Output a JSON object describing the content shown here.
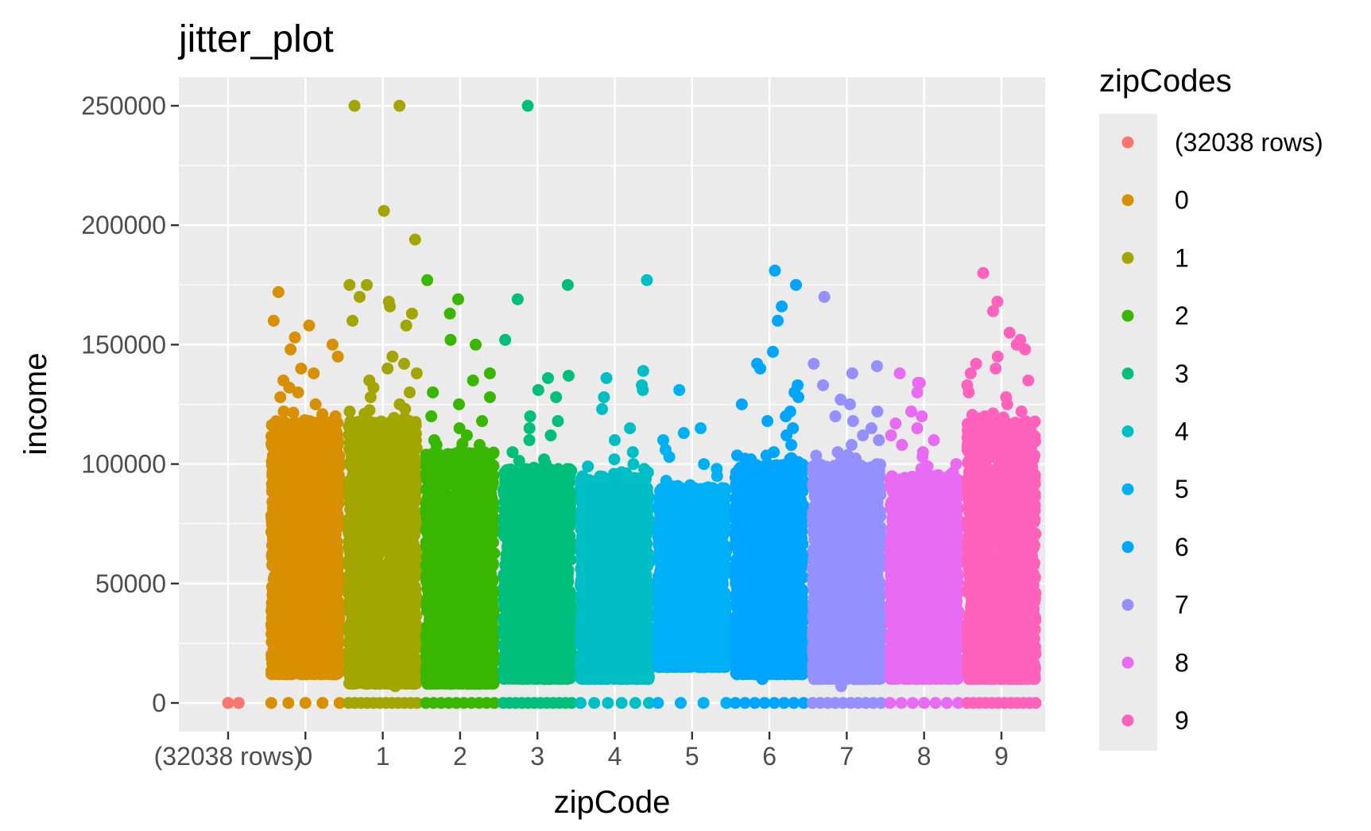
{
  "chart_data": {
    "type": "scatter",
    "style": "jitter",
    "title": "jitter_plot",
    "xlabel": "zipCode",
    "ylabel": "income",
    "ylim": [
      -12000,
      262000
    ],
    "y_ticks": [
      0,
      50000,
      100000,
      150000,
      200000,
      250000
    ],
    "y_tick_labels": [
      "0",
      "50000",
      "100000",
      "150000",
      "200000",
      "250000"
    ],
    "categories": [
      "(32038 rows)",
      "0",
      "1",
      "2",
      "3",
      "4",
      "5",
      "6",
      "7",
      "8",
      "9"
    ],
    "grid": true,
    "background": "#EBEBEB",
    "legend": {
      "title": "zipCodes",
      "position": "right",
      "entries": [
        "(32038 rows)",
        "0",
        "1",
        "2",
        "3",
        "4",
        "5",
        "6",
        "7",
        "8",
        "9"
      ]
    },
    "series": [
      {
        "name": "(32038 rows)",
        "color": "#F8766D",
        "bulk_range": [
          0,
          0
        ],
        "outliers": [
          0
        ],
        "zeros": 1
      },
      {
        "name": "0",
        "color": "#D89000",
        "bulk_range": [
          12000,
          118000
        ],
        "outliers": [
          172000,
          158000,
          160000,
          153000,
          150000,
          148000,
          145000,
          140000,
          138000,
          135000,
          132000,
          130000,
          128000,
          125000,
          122000,
          120000
        ],
        "zeros": 5
      },
      {
        "name": "1",
        "color": "#A3A500",
        "bulk_range": [
          8000,
          118000
        ],
        "outliers": [
          250000,
          250000,
          206000,
          194000,
          175000,
          175000,
          170000,
          168000,
          166000,
          163000,
          160000,
          158000,
          145000,
          142000,
          140000,
          138000,
          135000,
          132000,
          130000,
          128000,
          125000,
          122000,
          7000
        ],
        "zeros": 12
      },
      {
        "name": "2",
        "color": "#39B600",
        "bulk_range": [
          8000,
          105000
        ],
        "outliers": [
          177000,
          169000,
          163000,
          152000,
          150000,
          138000,
          135000,
          130000,
          128000,
          125000,
          120000,
          118000,
          115000,
          112000,
          110000,
          108000
        ],
        "zeros": 10
      },
      {
        "name": "3",
        "color": "#00BF7D",
        "bulk_range": [
          10000,
          98000
        ],
        "outliers": [
          250000,
          175000,
          169000,
          152000,
          137000,
          136000,
          131000,
          128000,
          120000,
          118000,
          115000,
          112000,
          110000,
          105000,
          102000
        ],
        "zeros": 12
      },
      {
        "name": "4",
        "color": "#00BFC4",
        "bulk_range": [
          10000,
          95000
        ],
        "outliers": [
          177000,
          139000,
          136000,
          133000,
          131000,
          128000,
          123000,
          115000,
          110000,
          105000,
          102000,
          100000,
          98000
        ],
        "zeros": 6
      },
      {
        "name": "5",
        "color": "#00B0F6",
        "bulk_range": [
          15000,
          90000
        ],
        "outliers": [
          131000,
          115000,
          113000,
          110000,
          106000,
          103000,
          100000,
          98000,
          95000,
          93000
        ],
        "zeros": 4
      },
      {
        "name": "6",
        "color": "#00A5FF",
        "bulk_range": [
          12000,
          100000
        ],
        "outliers": [
          181000,
          175000,
          166000,
          160000,
          147000,
          142000,
          140000,
          133000,
          130000,
          128000,
          125000,
          122000,
          120000,
          118000,
          115000,
          112000,
          108000,
          105000,
          102000,
          10000
        ],
        "zeros": 8
      },
      {
        "name": "7",
        "color": "#9590FF",
        "bulk_range": [
          10000,
          100000
        ],
        "outliers": [
          170000,
          142000,
          141000,
          138000,
          133000,
          127000,
          125000,
          122000,
          120000,
          118000,
          115000,
          112000,
          110000,
          108000,
          105000,
          103000,
          7000
        ],
        "zeros": 10
      },
      {
        "name": "8",
        "color": "#E76BF3",
        "bulk_range": [
          10000,
          95000
        ],
        "outliers": [
          138000,
          134000,
          134000,
          130000,
          122000,
          120000,
          117000,
          115000,
          112000,
          110000,
          108000,
          105000,
          103000,
          100000,
          98000
        ],
        "zeros": 7
      },
      {
        "name": "9",
        "color": "#FF62BC",
        "bulk_range": [
          10000,
          118000
        ],
        "outliers": [
          180000,
          168000,
          164000,
          155000,
          152000,
          150000,
          148000,
          145000,
          142000,
          140000,
          138000,
          135000,
          133000,
          130000,
          128000,
          125000,
          122000,
          120000
        ],
        "zeros": 12
      }
    ]
  }
}
